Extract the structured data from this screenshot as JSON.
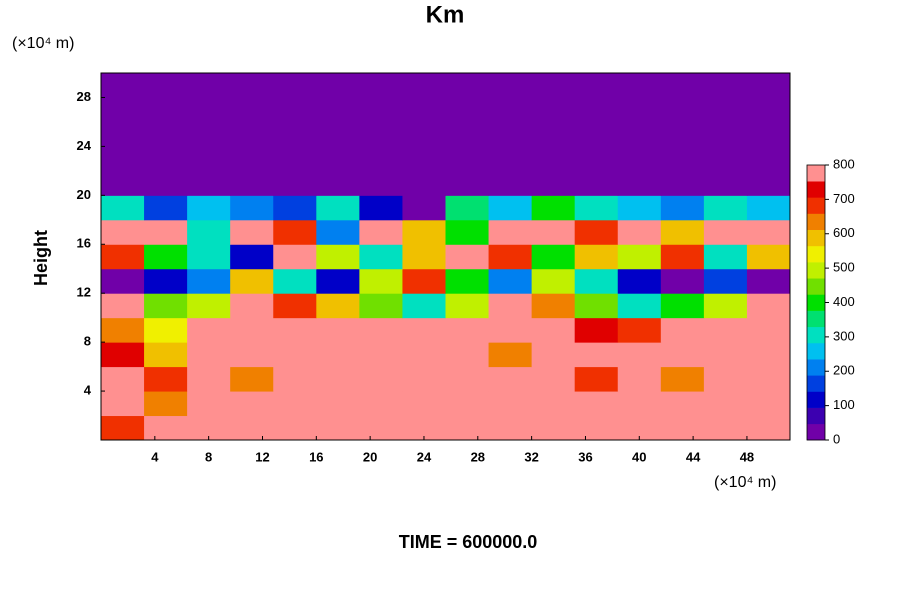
{
  "chart_data": {
    "type": "heatmap",
    "title": "Km",
    "y_label": "Height",
    "x_unit_label": "(×10⁴ m)",
    "y_unit_label": "(×10⁴ m)",
    "footer": "TIME = 600000.0",
    "xlim": [
      0,
      51.2
    ],
    "ylim": [
      0,
      30
    ],
    "xticks": [
      4,
      8,
      12,
      16,
      20,
      24,
      28,
      32,
      36,
      40,
      44,
      48
    ],
    "yticks": [
      4,
      8,
      12,
      16,
      20,
      24,
      28
    ],
    "zlim": [
      0,
      800
    ],
    "zticks": [
      0,
      100,
      200,
      300,
      400,
      500,
      600,
      700,
      800
    ],
    "level_step": 50,
    "colors": [
      "#7000a8",
      "#3c00b0",
      "#0000c8",
      "#0040e0",
      "#0080f0",
      "#00c0f0",
      "#00e0c0",
      "#00e070",
      "#00e000",
      "#70e000",
      "#c0f000",
      "#f0f000",
      "#f0c000",
      "#f08000",
      "#f03000",
      "#e00000",
      "#ff9090"
    ],
    "z": [
      [
        700,
        800,
        800,
        800,
        800,
        800,
        800,
        800,
        800,
        800,
        800,
        800,
        800,
        800,
        800,
        800
      ],
      [
        800,
        650,
        800,
        800,
        800,
        800,
        800,
        800,
        800,
        800,
        800,
        800,
        800,
        800,
        800,
        800
      ],
      [
        800,
        700,
        800,
        650,
        800,
        800,
        800,
        800,
        800,
        800,
        800,
        700,
        800,
        650,
        800,
        800
      ],
      [
        750,
        600,
        800,
        800,
        800,
        800,
        800,
        800,
        800,
        650,
        800,
        800,
        800,
        800,
        800,
        800
      ],
      [
        650,
        550,
        800,
        800,
        800,
        800,
        800,
        800,
        800,
        800,
        800,
        750,
        700,
        800,
        800,
        800
      ],
      [
        800,
        450,
        500,
        800,
        700,
        600,
        450,
        300,
        500,
        800,
        650,
        450,
        300,
        400,
        500,
        800
      ],
      [
        0,
        100,
        200,
        600,
        300,
        100,
        500,
        700,
        400,
        200,
        500,
        300,
        100,
        0,
        150,
        0
      ],
      [
        700,
        400,
        300,
        100,
        800,
        500,
        300,
        600,
        800,
        700,
        400,
        600,
        500,
        700,
        300,
        600
      ],
      [
        800,
        800,
        300,
        800,
        700,
        200,
        800,
        600,
        400,
        800,
        800,
        700,
        800,
        600,
        800,
        800
      ],
      [
        300,
        150,
        250,
        200,
        150,
        300,
        100,
        0,
        350,
        250,
        400,
        300,
        250,
        200,
        300,
        250
      ],
      [
        0,
        0,
        0,
        0,
        0,
        0,
        0,
        0,
        0,
        0,
        0,
        0,
        0,
        0,
        0,
        0
      ],
      [
        0,
        0,
        0,
        0,
        0,
        0,
        0,
        0,
        0,
        0,
        0,
        0,
        0,
        0,
        0,
        0
      ],
      [
        0,
        0,
        0,
        0,
        0,
        0,
        0,
        0,
        0,
        0,
        0,
        0,
        0,
        0,
        0,
        0
      ],
      [
        0,
        0,
        0,
        0,
        0,
        0,
        0,
        0,
        0,
        0,
        0,
        0,
        0,
        0,
        0,
        0
      ],
      [
        0,
        0,
        0,
        0,
        0,
        0,
        0,
        0,
        0,
        0,
        0,
        0,
        0,
        0,
        0,
        0
      ]
    ]
  }
}
